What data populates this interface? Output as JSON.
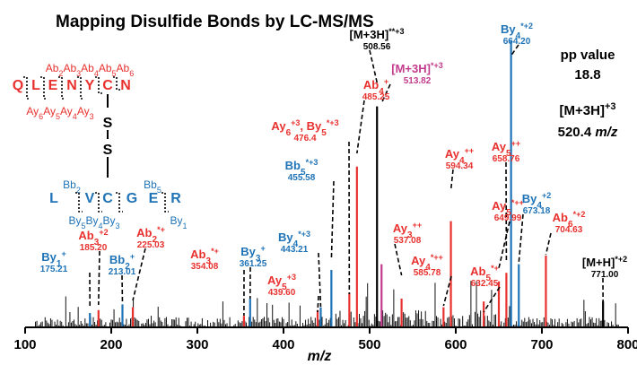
{
  "colors": {
    "red": "#e8312e",
    "blue": "#1f73b7",
    "black": "#000000",
    "magenta": "#c23b8c"
  },
  "chart_data": {
    "type": "bar",
    "title": "Mapping Disulfide Bonds by LC-MS/MS",
    "xlabel": "m/z",
    "ylabel": "",
    "xlim": [
      100,
      800
    ],
    "ylim": [
      0,
      100
    ],
    "xticks": [
      100,
      200,
      300,
      400,
      500,
      600,
      700,
      800
    ],
    "grid": false,
    "info": {
      "pp_label": "pp value",
      "pp_value": "18.8",
      "precursor_label": "[M+3H]+3",
      "precursor_value": "520.4 m/z"
    },
    "peaks": [
      {
        "mz": 175.21,
        "intensity": 5,
        "color": "blue",
        "ion": "By1+",
        "label_mz": "175.21"
      },
      {
        "mz": 185.2,
        "intensity": 6,
        "color": "red",
        "ion": "Ab3+2",
        "label_mz": "185.20"
      },
      {
        "mz": 213.01,
        "intensity": 8,
        "color": "blue",
        "ion": "Bb2+",
        "label_mz": "213.01"
      },
      {
        "mz": 225.03,
        "intensity": 7,
        "color": "red",
        "ion": "Ab2*+",
        "label_mz": "225.03"
      },
      {
        "mz": 354.08,
        "intensity": 4,
        "color": "red",
        "ion": "Ab3*+",
        "label_mz": "354.08"
      },
      {
        "mz": 361.25,
        "intensity": 10,
        "color": "blue",
        "ion": "By3+",
        "label_mz": "361.25"
      },
      {
        "mz": 439.6,
        "intensity": 6,
        "color": "red",
        "ion": "Ay5+3",
        "label_mz": "439.60"
      },
      {
        "mz": 443.21,
        "intensity": 7,
        "color": "blue",
        "ion": "By4*+3",
        "label_mz": "443.21"
      },
      {
        "mz": 455.58,
        "intensity": 20,
        "color": "blue",
        "ion": "Bb5*+3",
        "label_mz": "455.58"
      },
      {
        "mz": 476.4,
        "intensity": 12,
        "color": "red",
        "ion": "Ay6+3, By5*+3",
        "label_mz": "476.4"
      },
      {
        "mz": 485.25,
        "intensity": 56,
        "color": "red",
        "ion": "Ab4+",
        "label_mz": "485.25"
      },
      {
        "mz": 508.56,
        "intensity": 77,
        "color": "black",
        "ion": "[M+3H]**+3",
        "label_mz": "508.56"
      },
      {
        "mz": 513.82,
        "intensity": 22,
        "color": "magenta",
        "ion": "[M+3H]*+3",
        "label_mz": "513.82"
      },
      {
        "mz": 537.08,
        "intensity": 10,
        "color": "red",
        "ion": "Ay3++",
        "label_mz": "537.08"
      },
      {
        "mz": 585.78,
        "intensity": 7,
        "color": "red",
        "ion": "Ay4*++",
        "label_mz": "585.78"
      },
      {
        "mz": 594.34,
        "intensity": 37,
        "color": "red",
        "ion": "Ay4++",
        "label_mz": "594.34"
      },
      {
        "mz": 632.45,
        "intensity": 9,
        "color": "red",
        "ion": "Ab5*+",
        "label_mz": "632.45"
      },
      {
        "mz": 649.99,
        "intensity": 16,
        "color": "red",
        "ion": "Ay5*++",
        "label_mz": "649.99"
      },
      {
        "mz": 658.76,
        "intensity": 19,
        "color": "red",
        "ion": "Ay5++",
        "label_mz": "658.76"
      },
      {
        "mz": 664.2,
        "intensity": 100,
        "color": "blue",
        "ion": "By4*+2",
        "label_mz": "664.20"
      },
      {
        "mz": 673.18,
        "intensity": 22,
        "color": "blue",
        "ion": "By4+2",
        "label_mz": "673.18"
      },
      {
        "mz": 704.63,
        "intensity": 25,
        "color": "red",
        "ion": "Ab6*+2",
        "label_mz": "704.63"
      },
      {
        "mz": 771.0,
        "intensity": 9,
        "color": "black",
        "ion": "[M+H]*+2",
        "label_mz": "771.00"
      }
    ],
    "peptide": {
      "chain_a": {
        "residues": [
          "Q",
          "L",
          "E",
          "N",
          "Y",
          "C",
          "N"
        ],
        "b_ions": "Ab2Ab3Ab4Ab5Ab6",
        "y_ions": "Ay6Ay5Ay4Ay3"
      },
      "bridge": [
        "S",
        "S"
      ],
      "chain_b": {
        "residues": [
          "L",
          "V",
          "C",
          "G",
          "E",
          "R"
        ],
        "b_ion_1": "Bb2",
        "b_ion_2": "Bb5",
        "y_ions": "By5By4By3",
        "y_ion_last": "By1"
      }
    }
  }
}
